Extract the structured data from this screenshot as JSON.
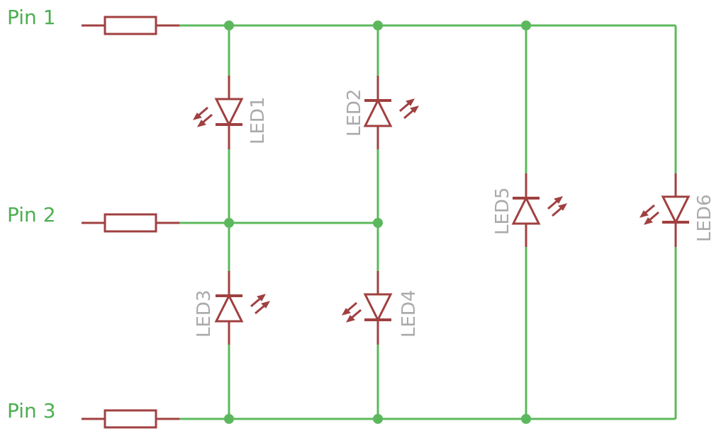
{
  "colors": {
    "wire": "#5cb85c",
    "component": "#a04040",
    "pin_label": "#4caf50",
    "led_label": "#aaaaaa",
    "background": "#ffffff"
  },
  "pins": [
    {
      "label": "Pin 1"
    },
    {
      "label": "Pin 2"
    },
    {
      "label": "Pin 3"
    }
  ],
  "leds": [
    {
      "label": "LED1",
      "anode": "Pin 1",
      "cathode": "Pin 2"
    },
    {
      "label": "LED2",
      "anode": "Pin 2",
      "cathode": "Pin 1"
    },
    {
      "label": "LED3",
      "anode": "Pin 3",
      "cathode": "Pin 2"
    },
    {
      "label": "LED4",
      "anode": "Pin 2",
      "cathode": "Pin 3"
    },
    {
      "label": "LED5",
      "anode": "Pin 3",
      "cathode": "Pin 1"
    },
    {
      "label": "LED6",
      "anode": "Pin 1",
      "cathode": "Pin 3"
    }
  ]
}
